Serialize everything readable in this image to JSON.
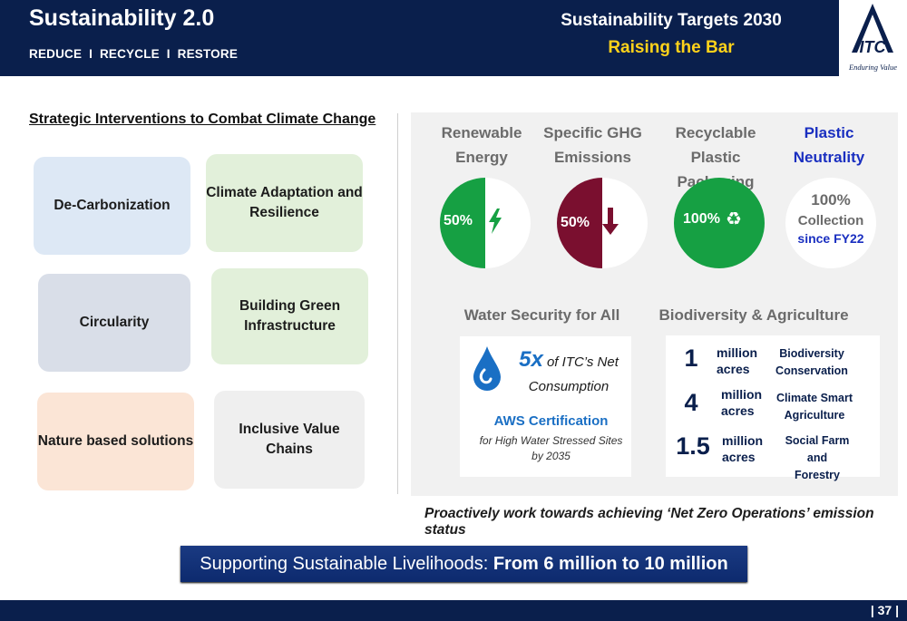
{
  "header": {
    "title": "Sustainability 2.0",
    "subtitle": "REDUCE  I  RECYCLE  I  RESTORE",
    "targets_title": "Sustainability Targets 2030",
    "targets_subtitle": "Raising the Bar",
    "logo_text": "ITC",
    "tagline": "Enduring Value",
    "colors": {
      "navy": "#0a1f4c",
      "yellow": "#ffd21a"
    }
  },
  "strategic": {
    "heading": "Strategic Interventions to Combat Climate Change",
    "cards": [
      {
        "label": "De-Carbonization",
        "color": "#dde8f5"
      },
      {
        "label": "Climate Adaptation and Resilience",
        "color": "#e2f0da"
      },
      {
        "label": "Circularity",
        "color": "#d9dee8"
      },
      {
        "label": "Building Green Infrastructure",
        "color": "#e2f0da"
      },
      {
        "label": "Nature based solutions",
        "color": "#fbe5d6"
      },
      {
        "label": "Inclusive Value Chains",
        "color": "#efefef"
      }
    ]
  },
  "targets": [
    {
      "title_line1": "Renewable",
      "title_line2": "Energy",
      "value": "50%",
      "fill_fraction": 0.5,
      "color": "#16a043",
      "icon": "lightning-icon"
    },
    {
      "title_line1": "Specific GHG",
      "title_line2": "Emissions",
      "value": "50%",
      "fill_fraction": 0.5,
      "color": "#7a0f2f",
      "icon": "down-arrow-icon"
    },
    {
      "title_line1": "Recyclable Plastic",
      "title_line2": "Packaging",
      "value": "100%",
      "fill_fraction": 1.0,
      "color": "#16a043",
      "icon": "recycle-icon"
    },
    {
      "title_line1": "Plastic",
      "title_line2": "Neutrality",
      "value": "100%",
      "line2": "Collection",
      "line3": "since FY22",
      "color": "#1a2fc0"
    }
  ],
  "water": {
    "heading": "Water Security for All",
    "big": "5x",
    "text_line1": "of ITC’s Net",
    "text_line2": "Consumption",
    "aws": "AWS Certification",
    "note_line1": "for High Water Stressed Sites",
    "note_line2": "by 2035",
    "icon": "water-drop-icon",
    "color": "#1a6fc4"
  },
  "biodiversity": {
    "heading": "Biodiversity & Agriculture",
    "rows": [
      {
        "num": "1",
        "unit1": "million",
        "unit2": "acres",
        "label1": "Biodiversity",
        "label2": "Conservation"
      },
      {
        "num": "4",
        "unit1": "million",
        "unit2": "acres",
        "label1": "Climate Smart",
        "label2": "Agriculture"
      },
      {
        "num": "1.5",
        "unit1": "million",
        "unit2": "acres",
        "label1": "Social Farm and",
        "label2": "Forestry"
      }
    ]
  },
  "net_zero": "Proactively work towards achieving ‘Net Zero Operations’ emission status",
  "banner": {
    "prefix": "Supporting Sustainable Livelihoods: ",
    "highlight": "From 6 million to 10 million"
  },
  "page_number": "| 37 |"
}
